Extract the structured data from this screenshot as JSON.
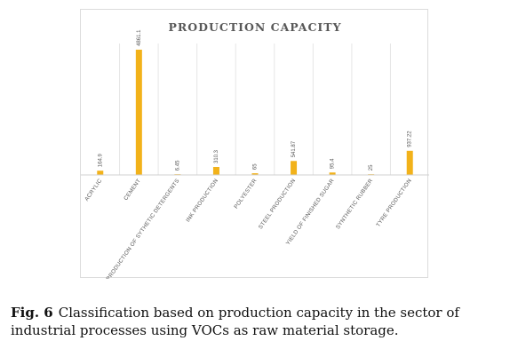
{
  "chart_data": {
    "type": "bar",
    "title": "PRODUCTION CAPACITY",
    "categories": [
      "ACRYLIC",
      "CEMENT",
      "PRODUCTION OF SYTHETIC DETERGENTS",
      "INK PRODUCTION",
      "POLYESTER",
      "STEEL PRODUCTION",
      "YIELD OF FINISHED SUGAR",
      "SYNTHETIC RUBBER",
      "TYRE PRODUCTION"
    ],
    "values": [
      164.9,
      4861.1,
      6.45,
      310.3,
      65,
      541.87,
      95.4,
      25,
      937.22
    ],
    "data_labels": [
      "164.9",
      "4861.1",
      "6.45",
      "310.3",
      "65",
      "541.87",
      "95.4",
      "25",
      "937.22"
    ],
    "ylim": [
      0,
      5100
    ],
    "grid": "vertical",
    "bar_color": "#f2b21a",
    "axis_color": "#d0d0d0",
    "grid_color": "#e6e6e6"
  },
  "caption": {
    "label": "Fig. 6",
    "text": "Classification based on production capacity in the sector of industrial processes using VOCs as raw material storage."
  }
}
